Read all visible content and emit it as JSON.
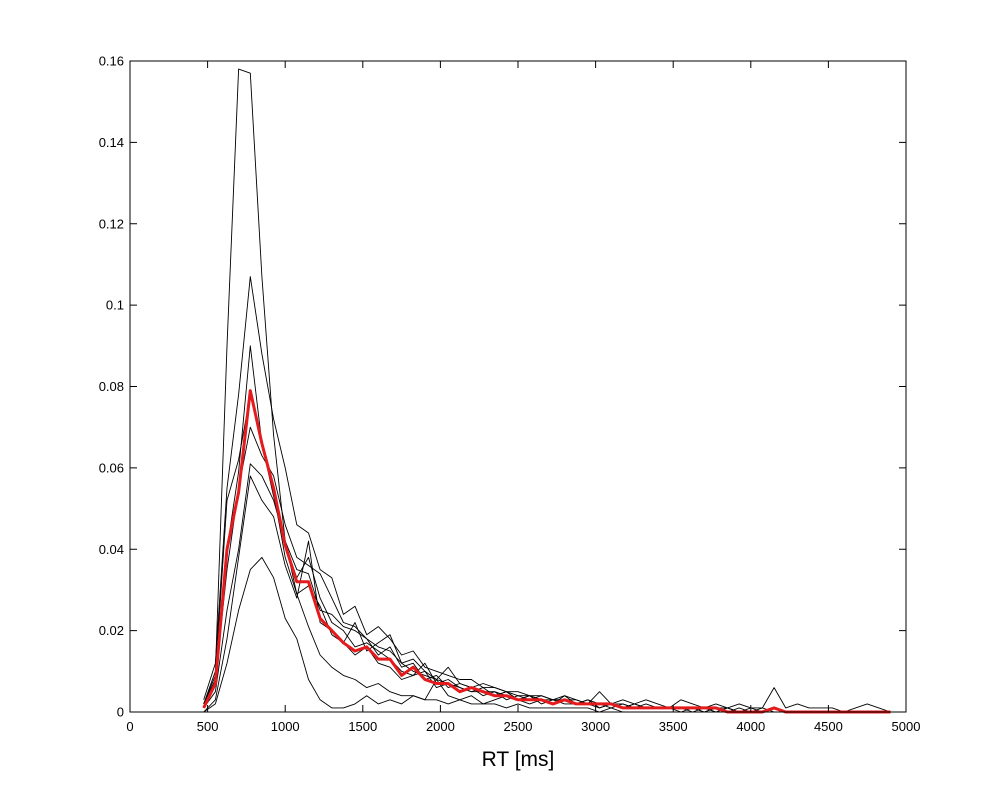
{
  "chart_data": {
    "type": "line",
    "xlabel": "RT [ms]",
    "ylabel": "",
    "xlim": [
      0,
      5000
    ],
    "ylim": [
      0,
      0.16
    ],
    "xticks": [
      0,
      500,
      1000,
      1500,
      2000,
      2500,
      3000,
      3500,
      4000,
      4500,
      5000
    ],
    "xtick_labels": [
      "0",
      "500",
      "1000",
      "1500",
      "2000",
      "2500",
      "3000",
      "3500",
      "4000",
      "4500",
      "5000"
    ],
    "yticks": [
      0,
      0.02,
      0.04,
      0.06,
      0.08,
      0.1,
      0.12,
      0.14,
      0.16
    ],
    "ytick_labels": [
      "0",
      "0.02",
      "0.04",
      "0.06",
      "0.08",
      "0.1",
      "0.12",
      "0.14",
      "0.16"
    ],
    "grid": false,
    "series_colors": {
      "individual": "#000000",
      "mean": "#e41a1c"
    },
    "x": [
      475,
      550,
      625,
      700,
      775,
      850,
      925,
      1000,
      1075,
      1150,
      1225,
      1300,
      1375,
      1450,
      1525,
      1600,
      1675,
      1750,
      1825,
      1900,
      1975,
      2050,
      2125,
      2200,
      2275,
      2350,
      2425,
      2500,
      2575,
      2650,
      2725,
      2800,
      2875,
      2950,
      3025,
      3100,
      3175,
      3250,
      3325,
      3400,
      3475,
      3550,
      3625,
      3700,
      3775,
      3850,
      3925,
      4000,
      4075,
      4150,
      4225,
      4300,
      4375,
      4450,
      4525,
      4600,
      4675,
      4750,
      4825,
      4900
    ],
    "series": [
      {
        "values": [
          0.002,
          0.009,
          0.052,
          0.062,
          0.078,
          0.066,
          0.054,
          0.038,
          0.029,
          0.031,
          0.026,
          0.019,
          0.017,
          0.014,
          0.016,
          0.012,
          0.011,
          0.008,
          0.009,
          0.01,
          0.006,
          0.007,
          0.005,
          0.006,
          0.004,
          0.005,
          0.003,
          0.004,
          0.003,
          0.003,
          0.002,
          0.003,
          0.002,
          0.002,
          0.002,
          0.001,
          0.002,
          0.001,
          0.001,
          0.001,
          0.001,
          0.001,
          0.001,
          0.001,
          0.001,
          0.0,
          0.001,
          0.0,
          0.001,
          0.0,
          0.0,
          0.0,
          0.0,
          0.0,
          0.0,
          0.0,
          0.0,
          0.0,
          0.0,
          0.0
        ]
      },
      {
        "values": [
          0.001,
          0.007,
          0.04,
          0.059,
          0.09,
          0.066,
          0.053,
          0.041,
          0.033,
          0.038,
          0.028,
          0.022,
          0.02,
          0.016,
          0.017,
          0.015,
          0.013,
          0.01,
          0.009,
          0.012,
          0.007,
          0.008,
          0.006,
          0.005,
          0.006,
          0.004,
          0.005,
          0.003,
          0.004,
          0.002,
          0.003,
          0.002,
          0.002,
          0.003,
          0.001,
          0.002,
          0.001,
          0.002,
          0.001,
          0.001,
          0.001,
          0.001,
          0.0,
          0.001,
          0.001,
          0.0,
          0.0,
          0.001,
          0.0,
          0.0,
          0.0,
          0.0,
          0.0,
          0.0,
          0.0,
          0.0,
          0.0,
          0.0,
          0.0,
          0.0
        ]
      },
      {
        "values": [
          0.002,
          0.008,
          0.035,
          0.055,
          0.07,
          0.063,
          0.058,
          0.046,
          0.038,
          0.036,
          0.034,
          0.028,
          0.022,
          0.021,
          0.018,
          0.016,
          0.015,
          0.012,
          0.01,
          0.009,
          0.008,
          0.007,
          0.006,
          0.005,
          0.005,
          0.005,
          0.004,
          0.003,
          0.003,
          0.004,
          0.003,
          0.003,
          0.002,
          0.002,
          0.002,
          0.002,
          0.001,
          0.002,
          0.001,
          0.001,
          0.001,
          0.001,
          0.001,
          0.001,
          0.0,
          0.001,
          0.0,
          0.0,
          0.0,
          0.001,
          0.0,
          0.0,
          0.0,
          0.0,
          0.0,
          0.0,
          0.0,
          0.0,
          0.0,
          0.0
        ]
      },
      {
        "values": [
          0.0,
          0.003,
          0.018,
          0.038,
          0.058,
          0.052,
          0.048,
          0.036,
          0.028,
          0.042,
          0.022,
          0.02,
          0.017,
          0.022,
          0.015,
          0.017,
          0.019,
          0.012,
          0.013,
          0.01,
          0.008,
          0.011,
          0.007,
          0.006,
          0.007,
          0.006,
          0.005,
          0.004,
          0.004,
          0.003,
          0.003,
          0.004,
          0.002,
          0.003,
          0.002,
          0.002,
          0.001,
          0.001,
          0.002,
          0.001,
          0.001,
          0.001,
          0.001,
          0.0,
          0.001,
          0.001,
          0.0,
          0.0,
          0.0,
          0.0,
          0.0,
          0.0,
          0.0,
          0.0,
          0.0,
          0.0,
          0.0,
          0.0,
          0.0,
          0.0
        ]
      },
      {
        "values": [
          0.001,
          0.005,
          0.025,
          0.04,
          0.061,
          0.058,
          0.052,
          0.042,
          0.035,
          0.034,
          0.025,
          0.024,
          0.021,
          0.02,
          0.018,
          0.014,
          0.016,
          0.011,
          0.012,
          0.008,
          0.009,
          0.006,
          0.007,
          0.006,
          0.005,
          0.004,
          0.005,
          0.003,
          0.004,
          0.003,
          0.002,
          0.003,
          0.002,
          0.002,
          0.001,
          0.002,
          0.001,
          0.001,
          0.001,
          0.001,
          0.001,
          0.0,
          0.001,
          0.0,
          0.001,
          0.0,
          0.0,
          0.0,
          0.0,
          0.0,
          0.0,
          0.0,
          0.0,
          0.0,
          0.0,
          0.0,
          0.0,
          0.0,
          0.0,
          0.0
        ]
      },
      {
        "values": [
          0.003,
          0.012,
          0.055,
          0.078,
          0.107,
          0.088,
          0.072,
          0.06,
          0.046,
          0.044,
          0.035,
          0.033,
          0.024,
          0.026,
          0.019,
          0.021,
          0.018,
          0.014,
          0.015,
          0.011,
          0.01,
          0.009,
          0.008,
          0.008,
          0.006,
          0.006,
          0.005,
          0.005,
          0.004,
          0.004,
          0.003,
          0.003,
          0.003,
          0.002,
          0.002,
          0.002,
          0.002,
          0.001,
          0.001,
          0.001,
          0.001,
          0.001,
          0.001,
          0.001,
          0.0,
          0.001,
          0.0,
          0.0,
          0.0,
          0.0,
          0.0,
          0.0,
          0.0,
          0.0,
          0.0,
          0.0,
          0.0,
          0.0,
          0.0,
          0.0
        ]
      },
      {
        "values": [
          0.002,
          0.01,
          0.09,
          0.158,
          0.157,
          0.107,
          0.068,
          0.042,
          0.029,
          0.021,
          0.014,
          0.011,
          0.009,
          0.008,
          0.006,
          0.007,
          0.005,
          0.004,
          0.004,
          0.003,
          0.003,
          0.002,
          0.003,
          0.002,
          0.002,
          0.002,
          0.001,
          0.002,
          0.001,
          0.001,
          0.001,
          0.001,
          0.001,
          0.001,
          0.0,
          0.001,
          0.0,
          0.0,
          0.0,
          0.0,
          0.0,
          0.0,
          0.0,
          0.0,
          0.0,
          0.0,
          0.0,
          0.0,
          0.0,
          0.0,
          0.0,
          0.0,
          0.0,
          0.0,
          0.0,
          0.0,
          0.0,
          0.0,
          0.0,
          0.0
        ]
      },
      {
        "values": [
          0.0,
          0.002,
          0.012,
          0.025,
          0.035,
          0.038,
          0.033,
          0.023,
          0.018,
          0.008,
          0.003,
          0.001,
          0.001,
          0.002,
          0.004,
          0.002,
          0.003,
          0.002,
          0.004,
          0.003,
          0.008,
          0.004,
          0.003,
          0.004,
          0.002,
          0.003,
          0.004,
          0.003,
          0.002,
          0.003,
          0.002,
          0.004,
          0.003,
          0.002,
          0.005,
          0.002,
          0.003,
          0.002,
          0.003,
          0.002,
          0.001,
          0.003,
          0.002,
          0.001,
          0.002,
          0.001,
          0.002,
          0.001,
          0.001,
          0.006,
          0.001,
          0.002,
          0.001,
          0.001,
          0.001,
          0.0,
          0.001,
          0.002,
          0.001,
          0.0
        ]
      }
    ],
    "mean_values": [
      0.001,
      0.007,
      0.04,
      0.054,
      0.079,
      0.066,
      0.055,
      0.041,
      0.032,
      0.032,
      0.023,
      0.02,
      0.017,
      0.015,
      0.016,
      0.013,
      0.013,
      0.009,
      0.011,
      0.008,
      0.007,
      0.007,
      0.005,
      0.006,
      0.005,
      0.004,
      0.004,
      0.003,
      0.003,
      0.003,
      0.002,
      0.003,
      0.002,
      0.002,
      0.002,
      0.002,
      0.001,
      0.001,
      0.001,
      0.001,
      0.001,
      0.001,
      0.001,
      0.001,
      0.001,
      0.0,
      0.0,
      0.0,
      0.0,
      0.001,
      0.0,
      0.0,
      0.0,
      0.0,
      0.0,
      0.0,
      0.0,
      0.0,
      0.0,
      0.0
    ]
  }
}
